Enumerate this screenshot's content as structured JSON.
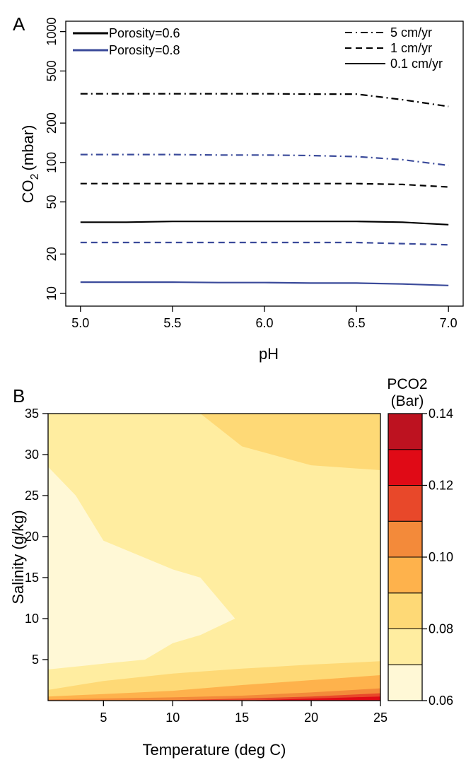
{
  "chart_data": [
    {
      "panel_label": "A",
      "type": "line",
      "xlabel": "pH",
      "ylabel_main": "CO",
      "ylabel_sub": "2",
      "ylabel_unit": "(mbar)",
      "xlim": [
        4.92,
        7.08
      ],
      "ylim": [
        8,
        1200
      ],
      "yscale": "log",
      "grid": false,
      "x_ticks": [
        5.0,
        5.5,
        6.0,
        6.5,
        7.0
      ],
      "x_tick_labels": [
        "5.0",
        "5.5",
        "6.0",
        "6.5",
        "7.0"
      ],
      "y_ticks": [
        10,
        20,
        50,
        100,
        200,
        500,
        1000
      ],
      "y_tick_labels": [
        "10",
        "20",
        "50",
        "100",
        "200",
        "500",
        "1000"
      ],
      "legend_porosity": {
        "placement": "top-left",
        "entries": [
          {
            "label": "Porosity=0.6",
            "color": "#000000"
          },
          {
            "label": "Porosity=0.8",
            "color": "#3a4a9a"
          }
        ]
      },
      "legend_rate": {
        "placement": "top-right",
        "entries": [
          {
            "label": "5 cm/yr",
            "dash": "dashdot"
          },
          {
            "label": "1 cm/yr",
            "dash": "dashed"
          },
          {
            "label": "0.1 cm/yr",
            "dash": "solid"
          }
        ]
      },
      "x": [
        5.0,
        5.25,
        5.5,
        5.75,
        6.0,
        6.25,
        6.5,
        6.75,
        7.0
      ],
      "series": [
        {
          "porosity": "0.6",
          "rate": "5 cm/yr",
          "color": "#000000",
          "dash": "dashdot",
          "values": [
            335,
            335,
            335,
            335,
            335,
            333,
            333,
            302,
            268
          ]
        },
        {
          "porosity": "0.6",
          "rate": "1 cm/yr",
          "color": "#000000",
          "dash": "dashed",
          "values": [
            69,
            69,
            69,
            69,
            69,
            69,
            69,
            68,
            65
          ]
        },
        {
          "porosity": "0.6",
          "rate": "0.1 cm/yr",
          "color": "#000000",
          "dash": "solid",
          "values": [
            35,
            35,
            35.5,
            35.5,
            35.5,
            35.5,
            35.5,
            35,
            33.5
          ]
        },
        {
          "porosity": "0.8",
          "rate": "5 cm/yr",
          "color": "#3a4a9a",
          "dash": "dashdot",
          "values": [
            115,
            115,
            115,
            114,
            114,
            113,
            111,
            105,
            95
          ]
        },
        {
          "porosity": "0.8",
          "rate": "1 cm/yr",
          "color": "#3a4a9a",
          "dash": "dashed",
          "values": [
            24.5,
            24.5,
            24.5,
            24.5,
            24.5,
            24.5,
            24.5,
            24,
            23.5
          ]
        },
        {
          "porosity": "0.8",
          "rate": "0.1 cm/yr",
          "color": "#3a4a9a",
          "dash": "solid",
          "values": [
            12.2,
            12.2,
            12.2,
            12.1,
            12.1,
            12,
            12,
            11.8,
            11.5
          ]
        }
      ]
    },
    {
      "panel_label": "B",
      "type": "heatmap",
      "xlabel": "Temperature (deg C)",
      "ylabel": "Salinity (g/kg)",
      "xlim": [
        1,
        25
      ],
      "ylim": [
        0,
        35
      ],
      "x_ticks": [
        5,
        10,
        15,
        20,
        25
      ],
      "y_ticks": [
        5,
        10,
        15,
        20,
        25,
        30,
        35
      ],
      "colorbar": {
        "title_line1": "PCO2",
        "title_line2": "(Bar)",
        "placement": "right",
        "levels": [
          0.06,
          0.07,
          0.08,
          0.09,
          0.1,
          0.11,
          0.12,
          0.13,
          0.14
        ],
        "tick_values": [
          0.06,
          0.08,
          0.1,
          0.12,
          0.14
        ],
        "tick_labels": [
          "0.06",
          "0.08",
          "0.10",
          "0.12",
          "0.14"
        ],
        "colors": [
          "#fff8d6",
          "#ffeda0",
          "#fed976",
          "#feb24c",
          "#f38a3a",
          "#e8482a",
          "#e00a16",
          "#bd1220"
        ]
      },
      "regions": [
        {
          "level_index": 1,
          "boundary": [
            [
              1,
              0
            ],
            [
              25,
              0
            ],
            [
              25,
              35
            ],
            [
              1,
              35
            ]
          ]
        },
        {
          "level_index": 0,
          "boundary": [
            [
              1,
              3.8
            ],
            [
              5,
              4.5
            ],
            [
              8,
              5
            ],
            [
              10,
              7
            ],
            [
              12,
              8
            ],
            [
              14.5,
              10
            ],
            [
              12,
              15
            ],
            [
              10,
              16
            ],
            [
              5,
              19.5
            ],
            [
              3,
              25
            ],
            [
              1,
              28.5
            ]
          ]
        },
        {
          "level_index": 2,
          "boundary": [
            [
              12,
              35
            ],
            [
              15,
              31
            ],
            [
              20,
              28.7
            ],
            [
              25,
              28.1
            ],
            [
              25,
              35
            ]
          ]
        },
        {
          "level_index": 2,
          "boundary": [
            [
              1,
              0
            ],
            [
              25,
              0
            ],
            [
              25,
              4.8
            ],
            [
              20,
              4.4
            ],
            [
              15,
              3.9
            ],
            [
              10,
              3.3
            ],
            [
              5,
              2.4
            ],
            [
              1,
              1.3
            ]
          ]
        },
        {
          "level_index": 3,
          "boundary": [
            [
              1,
              0
            ],
            [
              25,
              0
            ],
            [
              25,
              3.1
            ],
            [
              20,
              2.5
            ],
            [
              15,
              1.9
            ],
            [
              10,
              1.2
            ],
            [
              5,
              0.8
            ],
            [
              1,
              0.5
            ]
          ]
        },
        {
          "level_index": 4,
          "boundary": [
            [
              1,
              0
            ],
            [
              25,
              0
            ],
            [
              25,
              1.5
            ],
            [
              20,
              1.0
            ],
            [
              15,
              0.6
            ],
            [
              10,
              0.4
            ],
            [
              5,
              0.25
            ],
            [
              1,
              0.15
            ]
          ]
        },
        {
          "level_index": 5,
          "boundary": [
            [
              10,
              0
            ],
            [
              25,
              0
            ],
            [
              25,
              0.9
            ],
            [
              20,
              0.5
            ],
            [
              15,
              0.25
            ],
            [
              10,
              0.05
            ]
          ]
        },
        {
          "level_index": 6,
          "boundary": [
            [
              16,
              0
            ],
            [
              25,
              0
            ],
            [
              25,
              0.5
            ],
            [
              20,
              0.25
            ],
            [
              16,
              0.05
            ]
          ]
        }
      ]
    }
  ]
}
